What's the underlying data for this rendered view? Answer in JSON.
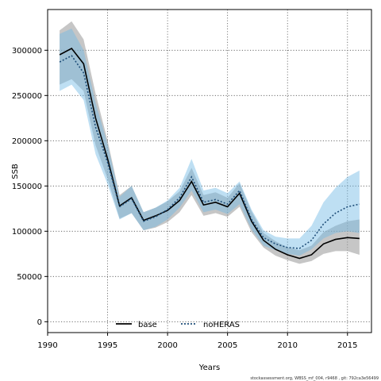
{
  "chart_data": {
    "type": "line",
    "xlabel": "Years",
    "ylabel": "SSB",
    "xlim": [
      1990,
      2017
    ],
    "ylim": [
      -12000,
      345000
    ],
    "xticks": [
      1990,
      1995,
      2000,
      2005,
      2010,
      2015
    ],
    "yticks": [
      0,
      50000,
      100000,
      150000,
      200000,
      250000,
      300000
    ],
    "grid": true,
    "legend_position": "bottom",
    "x": [
      1991,
      1992,
      1993,
      1994,
      1995,
      1996,
      1997,
      1998,
      1999,
      2000,
      2001,
      2002,
      2003,
      2004,
      2005,
      2006,
      2007,
      2008,
      2009,
      2010,
      2011,
      2012,
      2013,
      2014,
      2015,
      2016
    ],
    "series": [
      {
        "name": "base",
        "line_style": "solid",
        "color": "#000000",
        "band_color": "#a0a0a0",
        "values": [
          295000,
          302000,
          285000,
          225000,
          180000,
          128000,
          137000,
          112000,
          117000,
          123000,
          134000,
          155000,
          129000,
          132000,
          127000,
          142000,
          111000,
          90000,
          80000,
          74000,
          70000,
          74000,
          86000,
          91000,
          93000,
          92000
        ],
        "lower": [
          262000,
          268000,
          255000,
          195000,
          158000,
          114000,
          120000,
          101000,
          104000,
          110000,
          121000,
          140000,
          117000,
          120000,
          116000,
          127000,
          99000,
          82000,
          73000,
          68000,
          64000,
          67000,
          75000,
          78000,
          78000,
          74000
        ],
        "upper": [
          322000,
          332000,
          312000,
          252000,
          200000,
          140000,
          150000,
          121000,
          126000,
          133000,
          144000,
          170000,
          140000,
          143000,
          137000,
          153000,
          122000,
          98000,
          89000,
          82000,
          79000,
          84000,
          99000,
          106000,
          111000,
          113000
        ]
      },
      {
        "name": "noHERAS",
        "line_style": "dotted",
        "color": "#1f4e79",
        "band_color": "#6fb7e4",
        "values": [
          287000,
          294000,
          275000,
          215000,
          176000,
          127000,
          136000,
          111000,
          116000,
          124000,
          137000,
          160000,
          132000,
          135000,
          130000,
          145000,
          113000,
          93000,
          86000,
          82000,
          81000,
          90000,
          108000,
          120000,
          127000,
          130000
        ],
        "lower": [
          255000,
          262000,
          245000,
          185000,
          152000,
          113000,
          120000,
          101000,
          105000,
          113000,
          126000,
          145000,
          121000,
          124000,
          119000,
          130000,
          102000,
          84000,
          79000,
          75000,
          73000,
          80000,
          92000,
          98000,
          100000,
          98000
        ],
        "upper": [
          318000,
          324000,
          300000,
          242000,
          196000,
          138000,
          150000,
          121000,
          126000,
          134000,
          148000,
          180000,
          145000,
          148000,
          142000,
          155000,
          124000,
          101000,
          94000,
          92000,
          92000,
          106000,
          132000,
          148000,
          160000,
          167000
        ]
      }
    ],
    "footer": "stockassessment.org, WBSS_mf_004, r9468 , git: 792ca3e56499"
  }
}
